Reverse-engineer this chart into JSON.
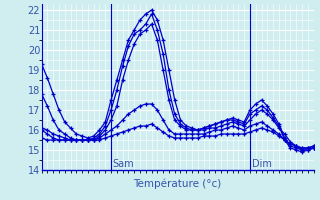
{
  "title": "",
  "xlabel": "Température (°c)",
  "ylabel": "",
  "bg_color": "#d0eef0",
  "grid_color": "#ffffff",
  "line_color": "#0000cc",
  "tick_label_color": "#3355aa",
  "xlim": [
    0,
    47
  ],
  "ylim": [
    14,
    22.3
  ],
  "yticks": [
    14,
    15,
    16,
    17,
    18,
    19,
    20,
    21,
    22
  ],
  "sam_x": 12,
  "dim_x": 36,
  "series": [
    [
      19.3,
      18.6,
      17.8,
      17.0,
      16.4,
      16.1,
      15.8,
      15.7,
      15.6,
      15.7,
      16.0,
      16.4,
      17.5,
      18.5,
      19.5,
      20.5,
      21.0,
      21.5,
      21.8,
      22.0,
      21.5,
      20.5,
      19.0,
      17.5,
      16.5,
      16.2,
      16.1,
      16.0,
      16.1,
      16.2,
      16.3,
      16.4,
      16.5,
      16.6,
      16.5,
      16.4,
      17.0,
      17.3,
      17.5,
      17.2,
      16.8,
      16.3,
      15.6,
      15.2,
      15.1,
      15.0,
      15.1,
      15.2
    ],
    [
      17.8,
      17.2,
      16.5,
      16.0,
      15.8,
      15.6,
      15.5,
      15.5,
      15.5,
      15.6,
      15.8,
      16.2,
      17.0,
      18.0,
      19.2,
      20.2,
      20.8,
      21.0,
      21.3,
      21.8,
      21.0,
      19.8,
      18.0,
      16.8,
      16.3,
      16.1,
      16.0,
      16.0,
      16.1,
      16.2,
      16.3,
      16.4,
      16.5,
      16.5,
      16.4,
      16.3,
      16.8,
      17.0,
      17.2,
      17.0,
      16.6,
      16.2,
      15.5,
      15.1,
      15.0,
      14.9,
      15.0,
      15.1
    ],
    [
      16.1,
      16.0,
      15.8,
      15.7,
      15.6,
      15.5,
      15.5,
      15.5,
      15.5,
      15.5,
      15.7,
      16.0,
      16.5,
      17.2,
      18.5,
      19.5,
      20.3,
      20.8,
      21.0,
      21.3,
      20.5,
      19.0,
      17.5,
      16.5,
      16.2,
      16.0,
      16.0,
      16.0,
      16.0,
      16.1,
      16.1,
      16.2,
      16.3,
      16.4,
      16.3,
      16.2,
      16.5,
      16.8,
      17.0,
      16.8,
      16.5,
      16.1,
      15.8,
      15.4,
      15.2,
      15.0,
      15.0,
      15.1
    ],
    [
      16.0,
      15.8,
      15.6,
      15.5,
      15.5,
      15.5,
      15.5,
      15.5,
      15.5,
      15.5,
      15.6,
      15.8,
      16.0,
      16.2,
      16.5,
      16.8,
      17.0,
      17.2,
      17.3,
      17.3,
      17.0,
      16.5,
      16.0,
      15.8,
      15.8,
      15.8,
      15.8,
      15.8,
      15.8,
      15.9,
      16.0,
      16.0,
      16.1,
      16.2,
      16.1,
      16.0,
      16.2,
      16.3,
      16.4,
      16.2,
      16.0,
      15.8,
      15.5,
      15.3,
      15.2,
      15.1,
      15.1,
      15.2
    ],
    [
      15.6,
      15.5,
      15.5,
      15.5,
      15.5,
      15.5,
      15.5,
      15.5,
      15.5,
      15.5,
      15.5,
      15.6,
      15.7,
      15.8,
      15.9,
      16.0,
      16.1,
      16.2,
      16.2,
      16.3,
      16.1,
      15.9,
      15.7,
      15.6,
      15.6,
      15.6,
      15.6,
      15.6,
      15.7,
      15.7,
      15.7,
      15.8,
      15.8,
      15.8,
      15.8,
      15.8,
      15.9,
      16.0,
      16.1,
      16.0,
      15.9,
      15.7,
      15.5,
      15.3,
      15.2,
      15.1,
      15.1,
      15.1
    ]
  ]
}
